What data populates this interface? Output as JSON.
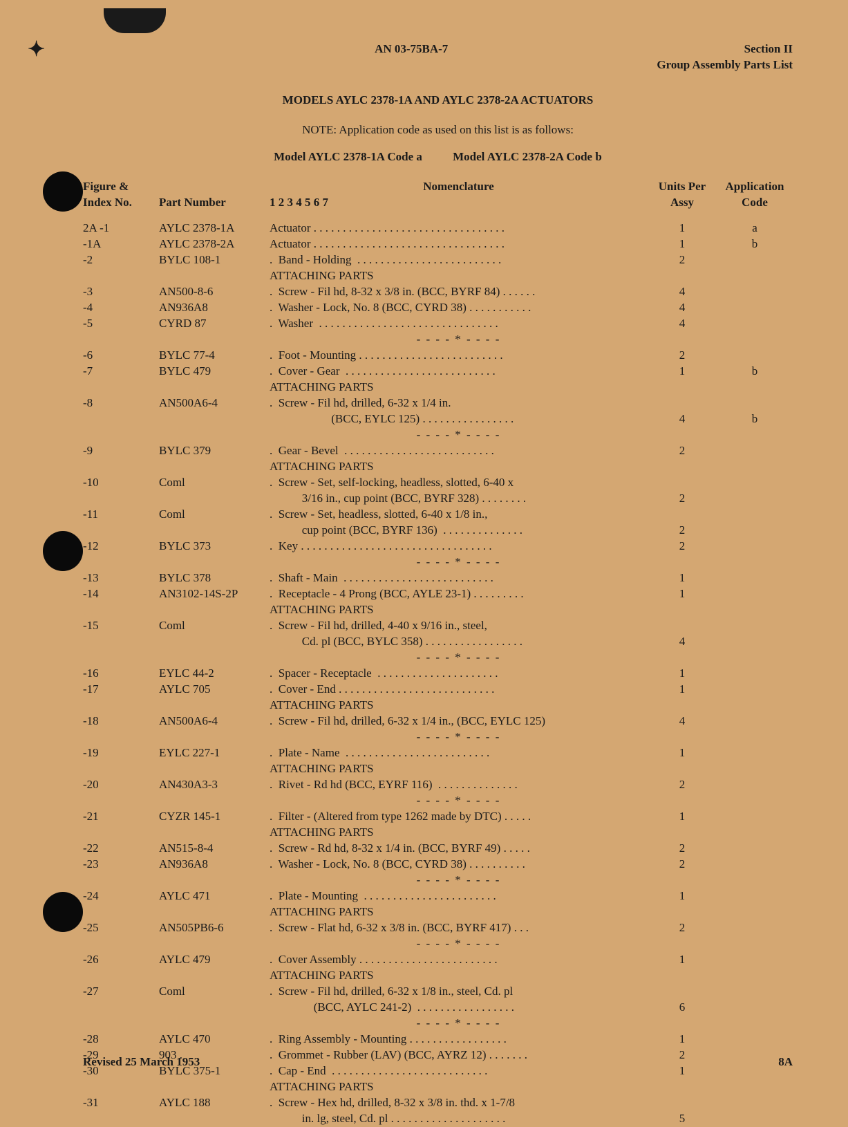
{
  "doc_number": "AN 03-75BA-7",
  "section": "Section II",
  "section_sub": "Group Assembly Parts List",
  "title": "MODELS AYLC 2378-1A AND AYLC 2378-2A ACTUATORS",
  "note": "NOTE: Application code as used on this list is as follows:",
  "code_a": "Model AYLC 2378-1A Code a",
  "code_b": "Model AYLC 2378-2A Code b",
  "headers": {
    "fig1": "Figure &",
    "fig2": "Index No.",
    "part": "Part Number",
    "nom_top": "Nomenclature",
    "nom_nums": "1  2  3  4  5  6  7",
    "units1": "Units Per",
    "units2": "Assy",
    "app1": "Application",
    "app2": "Code"
  },
  "rows": [
    {
      "fig": "2A -1",
      "part": "AYLC 2378-1A",
      "nom": "Actuator . . . . . . . . . . . . . . . . . . . . . . . . . . . . . . . . .",
      "units": "1",
      "app": "a"
    },
    {
      "fig": "   -1A",
      "part": "AYLC 2378-2A",
      "nom": "Actuator . . . . . . . . . . . . . . . . . . . . . . . . . . . . . . . . .",
      "units": "1",
      "app": "b"
    },
    {
      "fig": "   -2",
      "part": "BYLC 108-1",
      "nom": ".  Band - Holding  . . . . . . . . . . . . . . . . . . . . . . . . .",
      "units": "2",
      "app": ""
    },
    {
      "fig": "",
      "part": "",
      "nom": "ATTACHING PARTS",
      "units": "",
      "app": ""
    },
    {
      "fig": "   -3",
      "part": "AN500-8-6",
      "nom": ".  Screw - Fil hd, 8-32 x 3/8 in. (BCC, BYRF 84) . . . . . .",
      "units": "4",
      "app": ""
    },
    {
      "fig": "   -4",
      "part": "AN936A8",
      "nom": ".  Washer - Lock, No. 8 (BCC, CYRD 38) . . . . . . . . . . .",
      "units": "4",
      "app": ""
    },
    {
      "fig": "   -5",
      "part": "CYRD 87",
      "nom": ".  Washer  . . . . . . . . . . . . . . . . . . . . . . . . . . . . . . .",
      "units": "4",
      "app": ""
    },
    {
      "sep": "- - - - * - - - -"
    },
    {
      "fig": "   -6",
      "part": "BYLC 77-4",
      "nom": ".  Foot - Mounting . . . . . . . . . . . . . . . . . . . . . . . . .",
      "units": "2",
      "app": ""
    },
    {
      "fig": "   -7",
      "part": "BYLC 479",
      "nom": ".  Cover - Gear  . . . . . . . . . . . . . . . . . . . . . . . . . .",
      "units": "1",
      "app": "b"
    },
    {
      "fig": "",
      "part": "",
      "nom": "ATTACHING PARTS",
      "units": "",
      "app": ""
    },
    {
      "fig": "   -8",
      "part": "AN500A6-4",
      "nom": ".  Screw - Fil hd, drilled, 6-32 x 1/4 in.",
      "units": "",
      "app": ""
    },
    {
      "fig": "",
      "part": "",
      "nom": "                     (BCC, EYLC 125) . . . . . . . . . . . . . . . .",
      "units": "4",
      "app": "b"
    },
    {
      "sep": "- - - - * - - - -"
    },
    {
      "fig": "   -9",
      "part": "BYLC 379",
      "nom": ".  Gear - Bevel  . . . . . . . . . . . . . . . . . . . . . . . . . .",
      "units": "2",
      "app": ""
    },
    {
      "fig": "",
      "part": "",
      "nom": "ATTACHING PARTS",
      "units": "",
      "app": ""
    },
    {
      "fig": "   -10",
      "part": "Coml",
      "nom": ".  Screw - Set, self-locking, headless, slotted, 6-40 x",
      "units": "",
      "app": ""
    },
    {
      "fig": "",
      "part": "",
      "nom": "           3/16 in., cup point (BCC, BYRF 328) . . . . . . . .",
      "units": "2",
      "app": ""
    },
    {
      "fig": "   -11",
      "part": "Coml",
      "nom": ".  Screw - Set, headless, slotted, 6-40 x 1/8 in.,",
      "units": "",
      "app": ""
    },
    {
      "fig": "",
      "part": "",
      "nom": "           cup point (BCC, BYRF 136)  . . . . . . . . . . . . . .",
      "units": "2",
      "app": ""
    },
    {
      "fig": "   -12",
      "part": "BYLC 373",
      "nom": ".  Key . . . . . . . . . . . . . . . . . . . . . . . . . . . . . . . . .",
      "units": "2",
      "app": ""
    },
    {
      "sep": "- - - - * - - - -"
    },
    {
      "fig": "   -13",
      "part": "BYLC 378",
      "nom": ".  Shaft - Main  . . . . . . . . . . . . . . . . . . . . . . . . . .",
      "units": "1",
      "app": ""
    },
    {
      "fig": "   -14",
      "part": "AN3102-14S-2P",
      "nom": ".  Receptacle - 4 Prong (BCC, AYLE 23-1) . . . . . . . . .",
      "units": "1",
      "app": ""
    },
    {
      "fig": "",
      "part": "",
      "nom": "ATTACHING PARTS",
      "units": "",
      "app": ""
    },
    {
      "fig": "   -15",
      "part": "Coml",
      "nom": ".  Screw - Fil hd, drilled, 4-40 x 9/16 in., steel,",
      "units": "",
      "app": ""
    },
    {
      "fig": "",
      "part": "",
      "nom": "           Cd. pl (BCC, BYLC 358) . . . . . . . . . . . . . . . . .",
      "units": "4",
      "app": ""
    },
    {
      "sep": "- - - - * - - - -"
    },
    {
      "fig": "   -16",
      "part": "EYLC 44-2",
      "nom": ".  Spacer - Receptacle  . . . . . . . . . . . . . . . . . . . . .",
      "units": "1",
      "app": ""
    },
    {
      "fig": "   -17",
      "part": "AYLC 705",
      "nom": ".  Cover - End . . . . . . . . . . . . . . . . . . . . . . . . . . .",
      "units": "1",
      "app": ""
    },
    {
      "fig": "",
      "part": "",
      "nom": "ATTACHING PARTS",
      "units": "",
      "app": ""
    },
    {
      "fig": "   -18",
      "part": "AN500A6-4",
      "nom": ".  Screw - Fil hd, drilled, 6-32 x 1/4 in., (BCC, EYLC 125)",
      "units": "4",
      "app": ""
    },
    {
      "sep": "- - - - * - - - -"
    },
    {
      "fig": "   -19",
      "part": "EYLC 227-1",
      "nom": ".  Plate - Name  . . . . . . . . . . . . . . . . . . . . . . . . .",
      "units": "1",
      "app": ""
    },
    {
      "fig": "",
      "part": "",
      "nom": "ATTACHING PARTS",
      "units": "",
      "app": ""
    },
    {
      "fig": "   -20",
      "part": "AN430A3-3",
      "nom": ".  Rivet - Rd hd (BCC, EYRF 116)  . . . . . . . . . . . . . .",
      "units": "2",
      "app": ""
    },
    {
      "sep": "- - - - * - - - -"
    },
    {
      "fig": "   -21",
      "part": "CYZR 145-1",
      "nom": ".  Filter - (Altered from type 1262 made by DTC) . . . . .",
      "units": "1",
      "app": ""
    },
    {
      "fig": "",
      "part": "",
      "nom": "ATTACHING PARTS",
      "units": "",
      "app": ""
    },
    {
      "fig": "   -22",
      "part": "AN515-8-4",
      "nom": ".  Screw - Rd hd, 8-32 x 1/4 in. (BCC, BYRF 49) . . . . .",
      "units": "2",
      "app": ""
    },
    {
      "fig": "   -23",
      "part": "AN936A8",
      "nom": ".  Washer - Lock, No. 8 (BCC, CYRD 38) . . . . . . . . . .",
      "units": "2",
      "app": ""
    },
    {
      "sep": "- - - - * - - - -"
    },
    {
      "fig": "   -24",
      "part": "AYLC 471",
      "nom": ".  Plate - Mounting  . . . . . . . . . . . . . . . . . . . . . . .",
      "units": "1",
      "app": ""
    },
    {
      "fig": "",
      "part": "",
      "nom": "ATTACHING PARTS",
      "units": "",
      "app": ""
    },
    {
      "fig": "   -25",
      "part": "AN505PB6-6",
      "nom": ".  Screw - Flat hd, 6-32 x 3/8 in. (BCC, BYRF 417) . . .",
      "units": "2",
      "app": ""
    },
    {
      "sep": "- - - - * - - - -"
    },
    {
      "fig": "   -26",
      "part": "AYLC 479",
      "nom": ".  Cover Assembly . . . . . . . . . . . . . . . . . . . . . . . .",
      "units": "1",
      "app": ""
    },
    {
      "fig": "",
      "part": "",
      "nom": "ATTACHING PARTS",
      "units": "",
      "app": ""
    },
    {
      "fig": "   -27",
      "part": "Coml",
      "nom": ".  Screw - Fil hd, drilled, 6-32 x 1/8 in., steel, Cd. pl",
      "units": "",
      "app": ""
    },
    {
      "fig": "",
      "part": "",
      "nom": "               (BCC, AYLC 241-2)  . . . . . . . . . . . . . . . . .",
      "units": "6",
      "app": ""
    },
    {
      "sep": "- - - - * - - - -"
    },
    {
      "fig": "   -28",
      "part": "AYLC 470",
      "nom": ".  Ring Assembly - Mounting . . . . . . . . . . . . . . . . .",
      "units": "1",
      "app": ""
    },
    {
      "fig": "   -29",
      "part": "903  .",
      "nom": ".  Grommet - Rubber (LAV) (BCC, AYRZ 12) . . . . . . .",
      "units": "2",
      "app": ""
    },
    {
      "fig": "   -30",
      "part": "BYLC 375-1",
      "nom": ".  Cap - End  . . . . . . . . . . . . . . . . . . . . . . . . . . .",
      "units": "1",
      "app": ""
    },
    {
      "fig": "",
      "part": "",
      "nom": "ATTACHING PARTS",
      "units": "",
      "app": ""
    },
    {
      "fig": "   -31",
      "part": "AYLC 188",
      "nom": ".  Screw - Hex hd, drilled, 8-32 x 3/8 in. thd. x 1-7/8",
      "units": "",
      "app": ""
    },
    {
      "fig": "",
      "part": "",
      "nom": "           in. lg, steel, Cd. pl . . . . . . . . . . . . . . . . . . . .",
      "units": "5",
      "app": ""
    }
  ],
  "footer_left": "Revised 25 March 1953",
  "footer_right": "8A"
}
